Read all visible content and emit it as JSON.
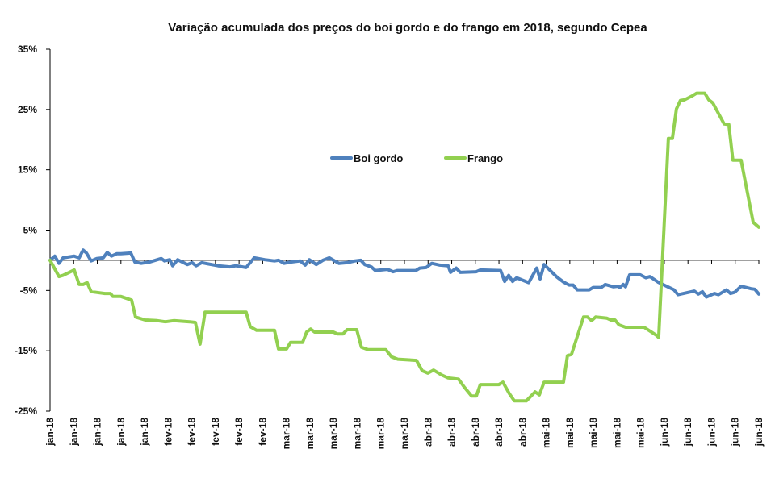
{
  "chart_data": {
    "type": "line",
    "title": "Variação acumulada dos preços do boi gordo e do frango em 2018, segundo Cepea",
    "xlabel": "",
    "ylabel": "",
    "ylim": [
      -25,
      35
    ],
    "yticks": [
      -25,
      -15,
      -5,
      5,
      15,
      25,
      35
    ],
    "ytick_labels": [
      "-25%",
      "-15%",
      "-5%",
      "5%",
      "15%",
      "25%",
      "35%"
    ],
    "grid": false,
    "legend_position": "center-upper",
    "categories": [
      "jan-18",
      "jan-18",
      "jan-18",
      "jan-18",
      "jan-18",
      "fev-18",
      "fev-18",
      "fev-18",
      "fev-18",
      "fev-18",
      "mar-18",
      "mar-18",
      "mar-18",
      "mar-18",
      "mar-18",
      "mar-18",
      "abr-18",
      "abr-18",
      "abr-18",
      "abr-18",
      "abr-18",
      "mai-18",
      "mai-18",
      "mai-18",
      "mai-18",
      "mai-18",
      "jun-18",
      "jun-18",
      "jun-18",
      "jun-18",
      "jun-18"
    ],
    "x_unit": "category position (0 = start of first category, 30 = last tick)",
    "series": [
      {
        "name": "Boi gordo",
        "color": "#4F81BD",
        "points": [
          [
            0.0,
            0.0
          ],
          [
            0.2,
            0.7
          ],
          [
            0.38,
            -0.5
          ],
          [
            0.55,
            0.4
          ],
          [
            1.02,
            0.7
          ],
          [
            1.23,
            0.4
          ],
          [
            1.4,
            1.7
          ],
          [
            1.54,
            1.2
          ],
          [
            1.74,
            -0.1
          ],
          [
            1.98,
            0.3
          ],
          [
            2.25,
            0.4
          ],
          [
            2.42,
            1.3
          ],
          [
            2.6,
            0.7
          ],
          [
            2.83,
            1.1
          ],
          [
            3.0,
            1.1
          ],
          [
            3.42,
            1.2
          ],
          [
            3.59,
            -0.3
          ],
          [
            3.86,
            -0.5
          ],
          [
            4.2,
            -0.3
          ],
          [
            4.71,
            0.3
          ],
          [
            4.85,
            -0.1
          ],
          [
            5.06,
            0.1
          ],
          [
            5.19,
            -0.9
          ],
          [
            5.4,
            0.1
          ],
          [
            5.81,
            -0.7
          ],
          [
            6.01,
            -0.4
          ],
          [
            6.18,
            -0.9
          ],
          [
            6.42,
            -0.4
          ],
          [
            7.11,
            -0.9
          ],
          [
            7.62,
            -1.1
          ],
          [
            7.86,
            -0.9
          ],
          [
            8.3,
            -1.2
          ],
          [
            8.64,
            0.4
          ],
          [
            9.09,
            0.1
          ],
          [
            9.5,
            -0.1
          ],
          [
            9.67,
            0.0
          ],
          [
            9.91,
            -0.5
          ],
          [
            10.18,
            -0.3
          ],
          [
            10.59,
            -0.1
          ],
          [
            10.8,
            -0.8
          ],
          [
            10.97,
            0.1
          ],
          [
            11.27,
            -0.7
          ],
          [
            11.55,
            0.0
          ],
          [
            11.82,
            0.4
          ],
          [
            12.23,
            -0.5
          ],
          [
            12.57,
            -0.4
          ],
          [
            12.91,
            -0.1
          ],
          [
            13.15,
            0.0
          ],
          [
            13.32,
            -0.7
          ],
          [
            13.6,
            -1.1
          ],
          [
            13.77,
            -1.7
          ],
          [
            14.28,
            -1.5
          ],
          [
            14.52,
            -1.9
          ],
          [
            14.69,
            -1.7
          ],
          [
            15.14,
            -1.7
          ],
          [
            15.48,
            -1.7
          ],
          [
            15.65,
            -1.3
          ],
          [
            15.92,
            -1.2
          ],
          [
            16.16,
            -0.5
          ],
          [
            16.5,
            -0.8
          ],
          [
            16.85,
            -0.9
          ],
          [
            16.95,
            -2.0
          ],
          [
            17.19,
            -1.3
          ],
          [
            17.36,
            -2.0
          ],
          [
            18.04,
            -1.9
          ],
          [
            18.21,
            -1.6
          ],
          [
            19.07,
            -1.7
          ],
          [
            19.24,
            -3.5
          ],
          [
            19.41,
            -2.5
          ],
          [
            19.58,
            -3.5
          ],
          [
            19.75,
            -2.9
          ],
          [
            20.26,
            -3.7
          ],
          [
            20.6,
            -1.3
          ],
          [
            20.74,
            -3.1
          ],
          [
            20.91,
            -0.7
          ],
          [
            21.46,
            -2.8
          ],
          [
            21.73,
            -3.6
          ],
          [
            21.97,
            -4.1
          ],
          [
            22.14,
            -4.1
          ],
          [
            22.31,
            -4.9
          ],
          [
            22.82,
            -4.9
          ],
          [
            22.99,
            -4.5
          ],
          [
            23.33,
            -4.5
          ],
          [
            23.5,
            -4.0
          ],
          [
            23.85,
            -4.4
          ],
          [
            24.02,
            -4.3
          ],
          [
            24.12,
            -4.5
          ],
          [
            24.26,
            -4.0
          ],
          [
            24.36,
            -4.4
          ],
          [
            24.53,
            -2.4
          ],
          [
            24.98,
            -2.4
          ],
          [
            25.22,
            -2.9
          ],
          [
            25.39,
            -2.7
          ],
          [
            25.73,
            -3.6
          ],
          [
            26.41,
            -4.9
          ],
          [
            26.58,
            -5.7
          ],
          [
            27.27,
            -5.1
          ],
          [
            27.44,
            -5.6
          ],
          [
            27.61,
            -5.2
          ],
          [
            27.78,
            -6.1
          ],
          [
            28.12,
            -5.5
          ],
          [
            28.29,
            -5.7
          ],
          [
            28.63,
            -4.9
          ],
          [
            28.8,
            -5.5
          ],
          [
            28.98,
            -5.3
          ],
          [
            29.25,
            -4.3
          ],
          [
            29.66,
            -4.7
          ],
          [
            29.83,
            -4.8
          ],
          [
            30.0,
            -5.6
          ]
        ]
      },
      {
        "name": "Frango",
        "color": "#92D050",
        "points": [
          [
            0.0,
            0.0
          ],
          [
            0.38,
            -2.7
          ],
          [
            0.55,
            -2.5
          ],
          [
            1.02,
            -1.6
          ],
          [
            1.23,
            -4.0
          ],
          [
            1.4,
            -4.0
          ],
          [
            1.57,
            -3.7
          ],
          [
            1.74,
            -5.2
          ],
          [
            2.32,
            -5.5
          ],
          [
            2.56,
            -5.5
          ],
          [
            2.66,
            -6.0
          ],
          [
            3.0,
            -6.0
          ],
          [
            3.45,
            -6.6
          ],
          [
            3.62,
            -9.4
          ],
          [
            4.03,
            -9.9
          ],
          [
            4.54,
            -10.0
          ],
          [
            4.88,
            -10.2
          ],
          [
            5.23,
            -10.0
          ],
          [
            5.91,
            -10.2
          ],
          [
            6.15,
            -10.3
          ],
          [
            6.35,
            -13.9
          ],
          [
            6.56,
            -8.6
          ],
          [
            8.3,
            -8.6
          ],
          [
            8.47,
            -11.0
          ],
          [
            8.74,
            -11.6
          ],
          [
            9.5,
            -11.6
          ],
          [
            9.67,
            -14.7
          ],
          [
            10.01,
            -14.7
          ],
          [
            10.18,
            -13.6
          ],
          [
            10.69,
            -13.6
          ],
          [
            10.86,
            -11.9
          ],
          [
            11.03,
            -11.4
          ],
          [
            11.2,
            -11.9
          ],
          [
            11.99,
            -11.9
          ],
          [
            12.16,
            -12.2
          ],
          [
            12.4,
            -12.2
          ],
          [
            12.57,
            -11.5
          ],
          [
            12.98,
            -11.5
          ],
          [
            13.18,
            -14.4
          ],
          [
            13.46,
            -14.8
          ],
          [
            14.21,
            -14.8
          ],
          [
            14.45,
            -16.0
          ],
          [
            14.72,
            -16.4
          ],
          [
            15.51,
            -16.6
          ],
          [
            15.75,
            -18.3
          ],
          [
            15.99,
            -18.7
          ],
          [
            16.23,
            -18.2
          ],
          [
            16.57,
            -19.0
          ],
          [
            16.85,
            -19.5
          ],
          [
            17.29,
            -19.7
          ],
          [
            17.53,
            -21.0
          ],
          [
            17.84,
            -22.5
          ],
          [
            18.04,
            -22.5
          ],
          [
            18.21,
            -20.6
          ],
          [
            18.99,
            -20.6
          ],
          [
            19.17,
            -20.2
          ],
          [
            19.44,
            -22.1
          ],
          [
            19.65,
            -23.3
          ],
          [
            20.16,
            -23.3
          ],
          [
            20.53,
            -21.8
          ],
          [
            20.71,
            -22.3
          ],
          [
            20.91,
            -20.2
          ],
          [
            21.73,
            -20.2
          ],
          [
            21.9,
            -15.8
          ],
          [
            22.07,
            -15.6
          ],
          [
            22.58,
            -9.4
          ],
          [
            22.75,
            -9.4
          ],
          [
            22.92,
            -10.0
          ],
          [
            23.09,
            -9.4
          ],
          [
            23.57,
            -9.6
          ],
          [
            23.74,
            -9.9
          ],
          [
            23.91,
            -9.9
          ],
          [
            24.08,
            -10.7
          ],
          [
            24.36,
            -11.1
          ],
          [
            25.14,
            -11.1
          ],
          [
            25.65,
            -12.4
          ],
          [
            25.76,
            -12.8
          ],
          [
            26.17,
            20.2
          ],
          [
            26.34,
            20.2
          ],
          [
            26.51,
            25.1
          ],
          [
            26.68,
            26.5
          ],
          [
            26.85,
            26.6
          ],
          [
            27.2,
            27.3
          ],
          [
            27.37,
            27.7
          ],
          [
            27.71,
            27.7
          ],
          [
            27.88,
            26.6
          ],
          [
            28.05,
            26.1
          ],
          [
            28.53,
            22.6
          ],
          [
            28.73,
            22.5
          ],
          [
            28.9,
            16.6
          ],
          [
            29.25,
            16.6
          ],
          [
            29.76,
            6.3
          ],
          [
            30.0,
            5.5
          ]
        ]
      }
    ]
  }
}
